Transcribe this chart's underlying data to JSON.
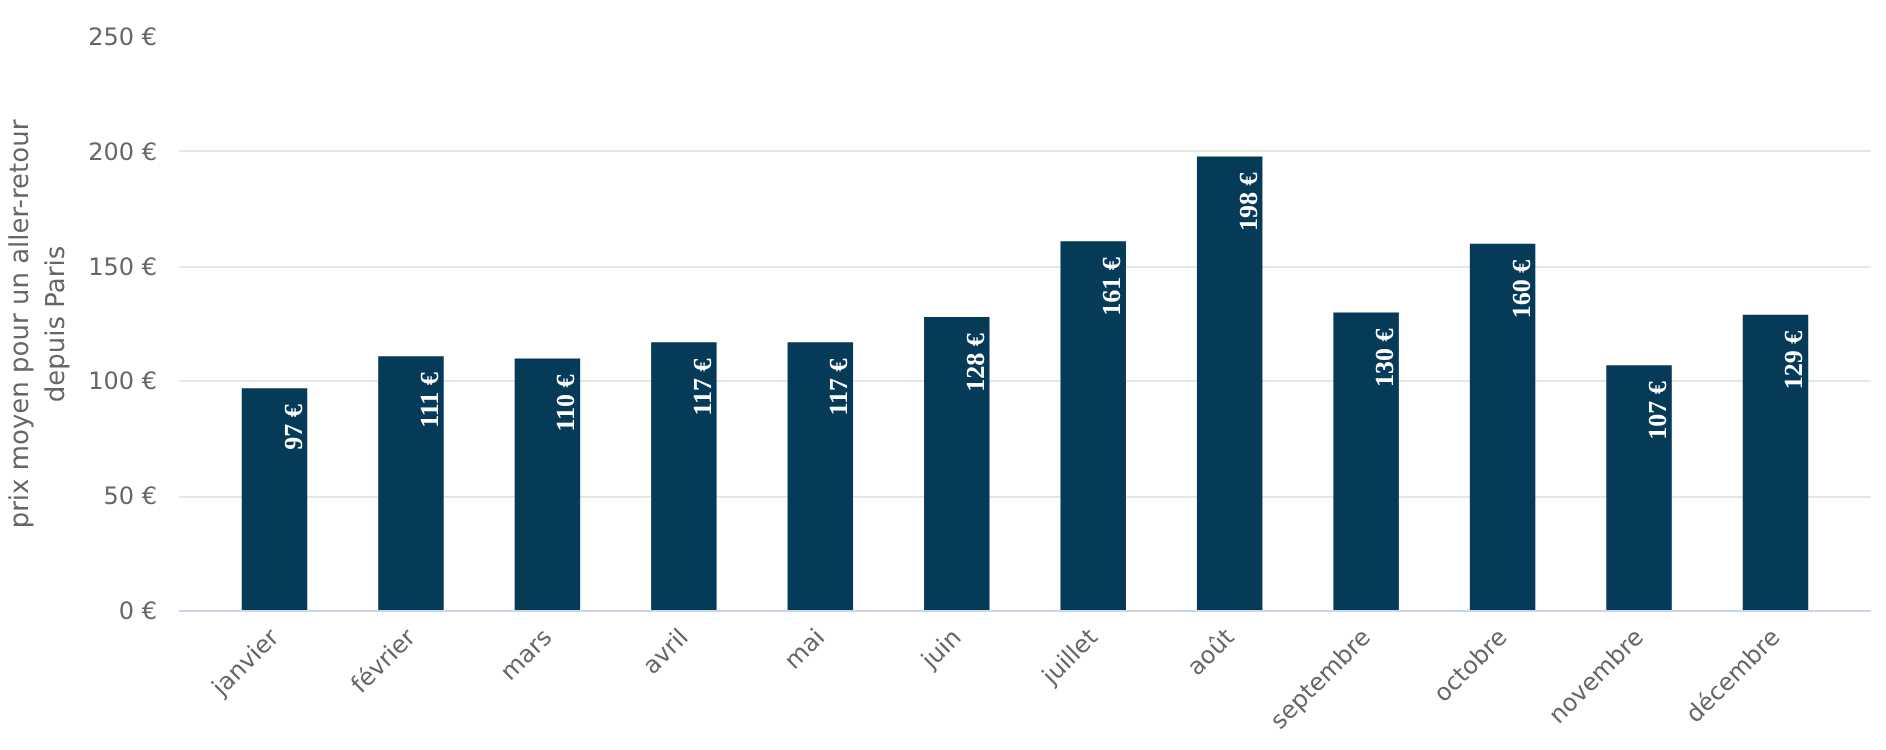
{
  "chart_data": {
    "type": "bar",
    "ylabel": "prix moyen pour un aller-retour\ndepuis Paris",
    "categories": [
      "janvier",
      "février",
      "mars",
      "avril",
      "mai",
      "juin",
      "juillet",
      "août",
      "septembre",
      "octobre",
      "novembre",
      "décembre"
    ],
    "values": [
      97,
      111,
      110,
      117,
      117,
      128,
      161,
      198,
      130,
      160,
      107,
      129
    ],
    "value_labels": [
      "97 €",
      "111 €",
      "110 €",
      "117 €",
      "117 €",
      "128 €",
      "161 €",
      "198 €",
      "130 €",
      "160 €",
      "107 €",
      "129 €"
    ],
    "color": "#053b59",
    "ylim": [
      0,
      250
    ],
    "yticks": [
      {
        "value": 0,
        "label": "0 €"
      },
      {
        "value": 50,
        "label": "50 €"
      },
      {
        "value": 100,
        "label": "100 €"
      },
      {
        "value": 150,
        "label": "150 €"
      },
      {
        "value": 200,
        "label": "200 €"
      },
      {
        "value": 250,
        "label": "250 €"
      }
    ],
    "grid": "y"
  }
}
